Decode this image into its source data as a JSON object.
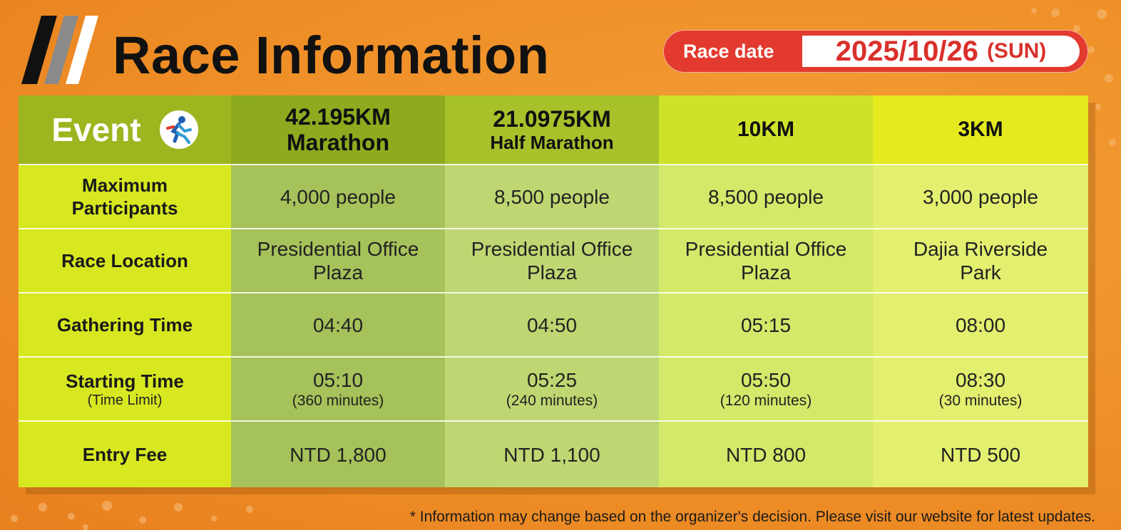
{
  "header": {
    "title": "Race Information",
    "race_date_label": "Race date",
    "race_date": "2025/10/26",
    "race_day": "(SUN)"
  },
  "table": {
    "corner_label": "Event",
    "corner_icon": "runner-icon",
    "events": [
      {
        "distance": "42.195KM",
        "name": "Marathon"
      },
      {
        "distance": "21.0975KM",
        "name": "Half Marathon"
      },
      {
        "distance": "10KM",
        "name": ""
      },
      {
        "distance": "3KM",
        "name": ""
      }
    ],
    "rows": [
      {
        "label": "Maximum Participants",
        "sublabel": "",
        "values": [
          {
            "main": "4,000 people",
            "sub": ""
          },
          {
            "main": "8,500 people",
            "sub": ""
          },
          {
            "main": "8,500 people",
            "sub": ""
          },
          {
            "main": "3,000 people",
            "sub": ""
          }
        ]
      },
      {
        "label": "Race Location",
        "sublabel": "",
        "values": [
          {
            "main": "Presidential Office Plaza",
            "sub": ""
          },
          {
            "main": "Presidential Office Plaza",
            "sub": ""
          },
          {
            "main": "Presidential Office Plaza",
            "sub": ""
          },
          {
            "main": "Dajia Riverside Park",
            "sub": ""
          }
        ]
      },
      {
        "label": "Gathering Time",
        "sublabel": "",
        "values": [
          {
            "main": "04:40",
            "sub": ""
          },
          {
            "main": "04:50",
            "sub": ""
          },
          {
            "main": "05:15",
            "sub": ""
          },
          {
            "main": "08:00",
            "sub": ""
          }
        ]
      },
      {
        "label": "Starting Time",
        "sublabel": "(Time Limit)",
        "values": [
          {
            "main": "05:10",
            "sub": "(360 minutes)"
          },
          {
            "main": "05:25",
            "sub": "(240 minutes)"
          },
          {
            "main": "05:50",
            "sub": "(120 minutes)"
          },
          {
            "main": "08:30",
            "sub": "(30 minutes)"
          }
        ]
      },
      {
        "label": "Entry Fee",
        "sublabel": "",
        "values": [
          {
            "main": "NTD 1,800",
            "sub": ""
          },
          {
            "main": "NTD 1,100",
            "sub": ""
          },
          {
            "main": "NTD 800",
            "sub": ""
          },
          {
            "main": "NTD 500",
            "sub": ""
          }
        ]
      }
    ]
  },
  "footnote": "* Information may change based on the organizer's decision. Please visit our website for latest updates.",
  "colors": {
    "background": "#ef8f27",
    "race_date_badge": "#e23a2e",
    "row_header": "#d8e820"
  }
}
